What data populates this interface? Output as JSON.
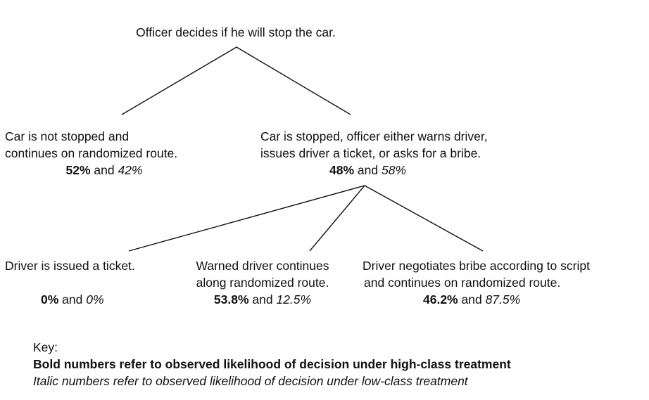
{
  "tree": {
    "root": {
      "text": "Officer decides if he will stop the car."
    },
    "not_stopped": {
      "lines": [
        "Car is not stopped and",
        "continues on randomized route."
      ],
      "high": "52%",
      "joiner": "and",
      "low": "42%"
    },
    "stopped": {
      "lines": [
        "Car is stopped, officer either warns driver,",
        "issues driver a ticket, or asks for a bribe."
      ],
      "high": "48%",
      "joiner": "and",
      "low": "58%"
    },
    "ticket": {
      "lines": [
        "Driver is issued a ticket."
      ],
      "high": "0%",
      "joiner": "and",
      "low": "0%"
    },
    "warned": {
      "lines": [
        "Warned driver continues",
        "along randomized route."
      ],
      "high": "53.8%",
      "joiner": "and",
      "low": "12.5%"
    },
    "bribe": {
      "lines": [
        "Driver negotiates bribe according to script",
        "and continues on randomized route."
      ],
      "high": "46.2%",
      "joiner": "and",
      "low": "87.5%"
    }
  },
  "key": {
    "title": "Key:",
    "bold_line": "Bold numbers refer to observed likelihood of decision under high-class treatment",
    "italic_line": "Italic numbers refer to observed likelihood of decision under low-class treatment"
  }
}
